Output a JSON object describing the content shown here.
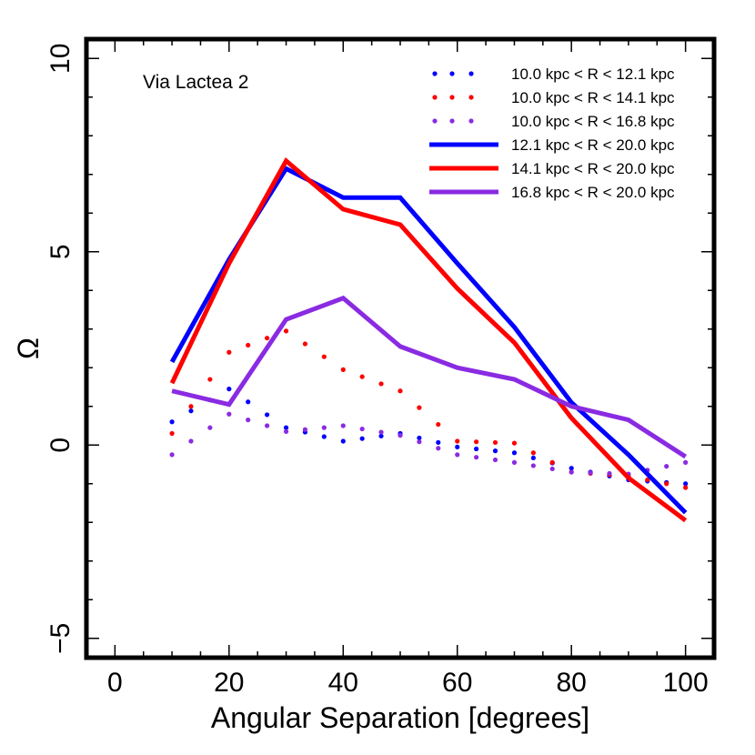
{
  "chart_data": {
    "type": "line",
    "title": "",
    "annotation": "Via Lactea 2",
    "xlabel": "Angular Separation  [degrees]",
    "ylabel": "Ω",
    "xlim": [
      -5,
      105
    ],
    "ylim": [
      -5.5,
      10.5
    ],
    "xticks": [
      0,
      20,
      40,
      60,
      80,
      100
    ],
    "yticks": [
      -5,
      0,
      5,
      10
    ],
    "xtick_labels": [
      "0",
      "20",
      "40",
      "60",
      "80",
      "100"
    ],
    "ytick_labels": [
      "−5",
      "0",
      "5",
      "10"
    ],
    "x_minor_step": 5,
    "y_minor_step": 1,
    "grid": false,
    "legend_position": "top-right",
    "series": [
      {
        "name": "10.0 kpc < R < 12.1 kpc",
        "style": "dotted",
        "color": "#0000ff",
        "x": [
          10,
          20,
          30,
          40,
          50,
          60,
          70,
          80,
          90,
          100
        ],
        "y": [
          0.6,
          1.45,
          0.45,
          0.1,
          0.3,
          -0.05,
          -0.2,
          -0.6,
          -0.9,
          -1.0
        ]
      },
      {
        "name": "10.0 kpc < R < 14.1 kpc",
        "style": "dotted",
        "color": "#ff0000",
        "x": [
          10,
          20,
          30,
          40,
          50,
          60,
          70,
          80,
          90,
          100
        ],
        "y": [
          0.3,
          2.4,
          2.95,
          1.95,
          1.4,
          0.1,
          0.05,
          -0.7,
          -0.8,
          -1.1
        ]
      },
      {
        "name": "10.0 kpc < R < 16.8 kpc",
        "style": "dotted",
        "color": "#8a2be2",
        "x": [
          10,
          20,
          30,
          40,
          50,
          60,
          70,
          80,
          90,
          100
        ],
        "y": [
          -0.25,
          0.8,
          0.35,
          0.5,
          0.25,
          -0.25,
          -0.45,
          -0.7,
          -0.75,
          -0.45
        ]
      },
      {
        "name": "12.1 kpc < R < 20.0 kpc",
        "style": "solid",
        "color": "#0000ff",
        "x": [
          10,
          20,
          30,
          40,
          50,
          60,
          70,
          80,
          90,
          100
        ],
        "y": [
          2.15,
          4.8,
          7.15,
          6.4,
          6.4,
          4.7,
          3.05,
          1.1,
          -0.25,
          -1.75
        ]
      },
      {
        "name": "14.1 kpc < R < 20.0 kpc",
        "style": "solid",
        "color": "#ff0000",
        "x": [
          10,
          20,
          30,
          40,
          50,
          60,
          70,
          80,
          90,
          100
        ],
        "y": [
          1.6,
          4.7,
          7.35,
          6.1,
          5.7,
          4.05,
          2.65,
          0.7,
          -0.85,
          -1.95
        ]
      },
      {
        "name": "16.8 kpc < R < 20.0 kpc",
        "style": "solid",
        "color": "#8a2be2",
        "x": [
          10,
          20,
          30,
          40,
          50,
          60,
          70,
          80,
          90,
          100
        ],
        "y": [
          1.4,
          1.05,
          3.25,
          3.8,
          2.55,
          2.0,
          1.7,
          1.0,
          0.65,
          -0.3
        ]
      }
    ]
  }
}
